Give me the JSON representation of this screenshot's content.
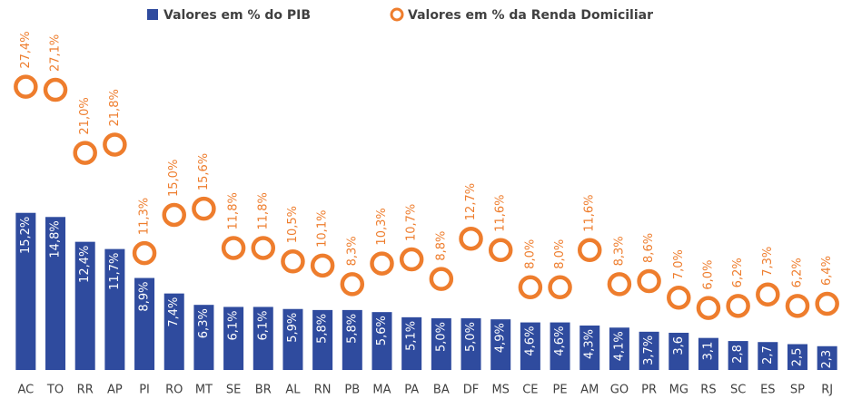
{
  "chart_data": {
    "type": "bar",
    "categories": [
      "AC",
      "TO",
      "RR",
      "AP",
      "PI",
      "RO",
      "MT",
      "SE",
      "BR",
      "AL",
      "RN",
      "PB",
      "MA",
      "PA",
      "BA",
      "DF",
      "MS",
      "CE",
      "PE",
      "AM",
      "GO",
      "PR",
      "MG",
      "RS",
      "SC",
      "ES",
      "SP",
      "RJ"
    ],
    "series": [
      {
        "name": "Valores em % do PIB",
        "type": "bar",
        "color": "#2f4b9e",
        "values": [
          15.2,
          14.8,
          12.4,
          11.7,
          8.9,
          7.4,
          6.3,
          6.1,
          6.1,
          5.9,
          5.8,
          5.8,
          5.6,
          5.1,
          5.0,
          5.0,
          4.9,
          4.6,
          4.6,
          4.3,
          4.1,
          3.7,
          3.6,
          3.1,
          2.8,
          2.7,
          2.5,
          2.3
        ],
        "value_labels": [
          "15,2%",
          "14,8%",
          "12,4%",
          "11,7%",
          "8,9%",
          "7,4%",
          "6,3%",
          "6,1%",
          "6,1%",
          "5,9%",
          "5,8%",
          "5,8%",
          "5,6%",
          "5,1%",
          "5,0%",
          "5,0%",
          "4,9%",
          "4,6%",
          "4,6%",
          "4,3%",
          "4,1%",
          "3,7%",
          "3,6",
          "3,1",
          "2,8",
          "2,7",
          "2,5",
          "2,3"
        ]
      },
      {
        "name": "Valores em % da Renda Domiciliar",
        "type": "scatter",
        "color": "#ee7d2d",
        "values": [
          27.4,
          27.1,
          21.0,
          21.8,
          11.3,
          15.0,
          15.6,
          11.8,
          11.8,
          10.5,
          10.1,
          8.3,
          10.3,
          10.7,
          8.8,
          12.7,
          11.6,
          8.0,
          8.0,
          11.6,
          8.3,
          8.6,
          7.0,
          6.0,
          6.2,
          7.3,
          6.2,
          6.4
        ],
        "value_labels": [
          "27,4%",
          "27,1%",
          "21,0%",
          "21,8%",
          "11,3%",
          "15,0%",
          "15,6%",
          "11,8%",
          "11,8%",
          "10,5%",
          "10,1%",
          "8,3%",
          "10,3%",
          "10,7%",
          "8,8%",
          "12,7%",
          "11,6%",
          "8,0%",
          "8,0%",
          "11,6%",
          "8,3%",
          "8,6%",
          "7,0%",
          "6,0%",
          "6,2%",
          "7,3%",
          "6,2%",
          "6,4%"
        ]
      }
    ],
    "legend": "top"
  }
}
